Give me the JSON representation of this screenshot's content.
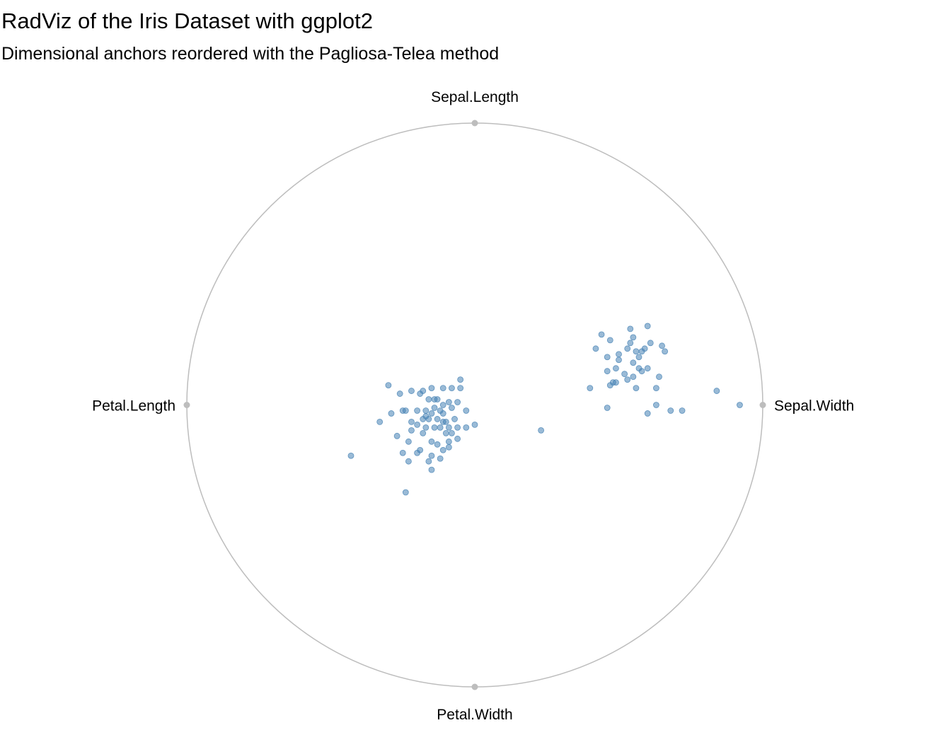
{
  "chart_data": {
    "type": "scatter",
    "title": "RadViz of the Iris Dataset with ggplot2",
    "subtitle": "Dimensional anchors reordered with the Pagliosa-Telea method",
    "xlim": [
      -1,
      1
    ],
    "ylim": [
      -1,
      1
    ],
    "color": "#4682b4",
    "anchors": [
      {
        "label": "Sepal.Length",
        "x": 0,
        "y": 1
      },
      {
        "label": "Sepal.Width",
        "x": 1,
        "y": 0
      },
      {
        "label": "Petal.Width",
        "x": 0,
        "y": -1
      },
      {
        "label": "Petal.Length",
        "x": -1,
        "y": 0
      }
    ],
    "x": [
      0.44,
      0.54,
      0.6,
      0.55,
      0.54,
      0.61,
      0.59,
      0.65,
      0.42,
      0.47,
      0.66,
      0.5,
      0.53,
      0.56,
      0.58,
      0.57,
      0.46,
      0.5,
      0.55,
      0.49,
      0.57,
      0.6,
      0.58,
      0.46,
      0.52,
      0.55,
      0.64,
      0.48,
      0.49,
      0.53,
      0.47,
      0.56,
      0.63,
      0.4,
      0.84,
      0.46,
      0.6,
      0.63,
      0.68,
      0.72,
      0.92,
      0.23,
      -0.3,
      -0.26,
      -0.22,
      -0.19,
      -0.18,
      -0.15,
      -0.11,
      -0.08,
      -0.05,
      -0.05,
      -0.14,
      -0.16,
      -0.13,
      -0.09,
      -0.06,
      -0.24,
      -0.25,
      -0.29,
      -0.2,
      -0.17,
      -0.15,
      -0.12,
      -0.11,
      -0.08,
      -0.03,
      -0.33,
      -0.22,
      -0.18,
      -0.16,
      -0.13,
      -0.11,
      -0.1,
      -0.07,
      -0.03,
      0,
      -0.2,
      -0.17,
      -0.14,
      -0.12,
      -0.09,
      -0.06,
      -0.22,
      -0.18,
      -0.1,
      -0.08,
      -0.06,
      -0.27,
      -0.23,
      -0.15,
      -0.09,
      -0.13,
      -0.11,
      -0.09,
      -0.19,
      -0.25,
      -0.2,
      -0.15,
      -0.12,
      -0.23,
      -0.16,
      -0.15,
      -0.43,
      -0.24,
      -0.17,
      -0.11,
      -0.14
    ],
    "values": [
      0.25,
      0.27,
      0.28,
      0.24,
      0.22,
      0.22,
      0.2,
      0.21,
      0.2,
      0.23,
      0.19,
      0.18,
      0.2,
      0.19,
      0.19,
      0.17,
      0.17,
      0.16,
      0.15,
      0.13,
      0.13,
      0.13,
      0.12,
      0.12,
      0.11,
      0.1,
      0.1,
      0.08,
      0.08,
      0.09,
      0.07,
      0.06,
      0.06,
      0.06,
      0.05,
      -0.01,
      -0.03,
      0,
      -0.02,
      -0.02,
      0,
      -0.09,
      0.07,
      0.04,
      0.05,
      0.04,
      0.05,
      0.06,
      0.06,
      0.06,
      0.09,
      0.06,
      0.02,
      0.02,
      0.02,
      0.01,
      0.01,
      -0.02,
      -0.02,
      -0.03,
      -0.02,
      -0.02,
      -0.03,
      -0.02,
      -0.03,
      -0.01,
      -0.02,
      -0.06,
      -0.06,
      -0.05,
      -0.05,
      -0.05,
      -0.06,
      -0.06,
      -0.05,
      -0.08,
      -0.07,
      -0.07,
      -0.08,
      -0.08,
      -0.08,
      -0.08,
      -0.08,
      -0.09,
      -0.1,
      -0.1,
      -0.1,
      -0.12,
      -0.11,
      -0.13,
      -0.13,
      -0.13,
      -0.14,
      -0.16,
      -0.15,
      -0.16,
      -0.17,
      -0.17,
      -0.18,
      -0.19,
      -0.2,
      -0.2,
      -0.23,
      -0.18,
      -0.31,
      -0.04,
      0,
      -0.01
    ]
  }
}
